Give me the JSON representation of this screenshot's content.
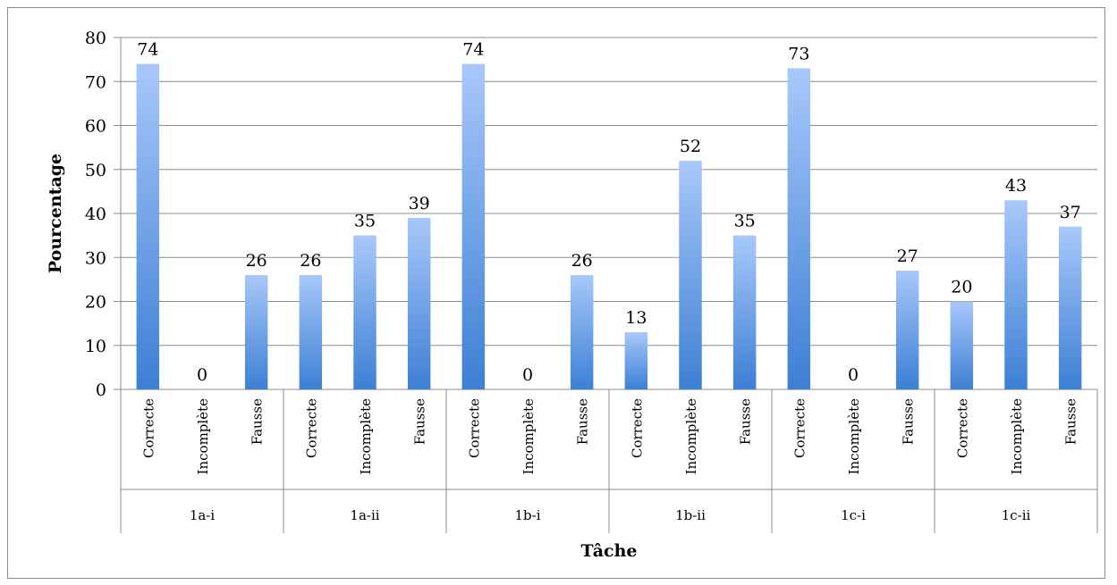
{
  "chart_data": {
    "type": "bar",
    "title": "",
    "xlabel": "Tâche",
    "ylabel": "Pourcentage",
    "ylim": [
      0,
      80
    ],
    "ytick_step": 10,
    "grid": true,
    "legend": "none",
    "bar_color_top": "#a8c8fa",
    "bar_color_bottom": "#3d7fd4",
    "groups": [
      {
        "label": "1a-i",
        "categories": [
          "Correcte",
          "Incomplète",
          "Fausse"
        ],
        "values": [
          74,
          0,
          26
        ]
      },
      {
        "label": "1a-ii",
        "categories": [
          "Correcte",
          "Incomplète",
          "Fausse"
        ],
        "values": [
          26,
          35,
          39
        ]
      },
      {
        "label": "1b-i",
        "categories": [
          "Correcte",
          "Incomplète",
          "Fausse"
        ],
        "values": [
          74,
          0,
          26
        ]
      },
      {
        "label": "1b-ii",
        "categories": [
          "Correcte",
          "Incomplète",
          "Fausse"
        ],
        "values": [
          13,
          52,
          35
        ]
      },
      {
        "label": "1c-i",
        "categories": [
          "Correcte",
          "Incomplète",
          "Fausse"
        ],
        "values": [
          73,
          0,
          27
        ]
      },
      {
        "label": "1c-ii",
        "categories": [
          "Correcte",
          "Incomplète",
          "Fausse"
        ],
        "values": [
          20,
          43,
          37
        ]
      }
    ]
  }
}
